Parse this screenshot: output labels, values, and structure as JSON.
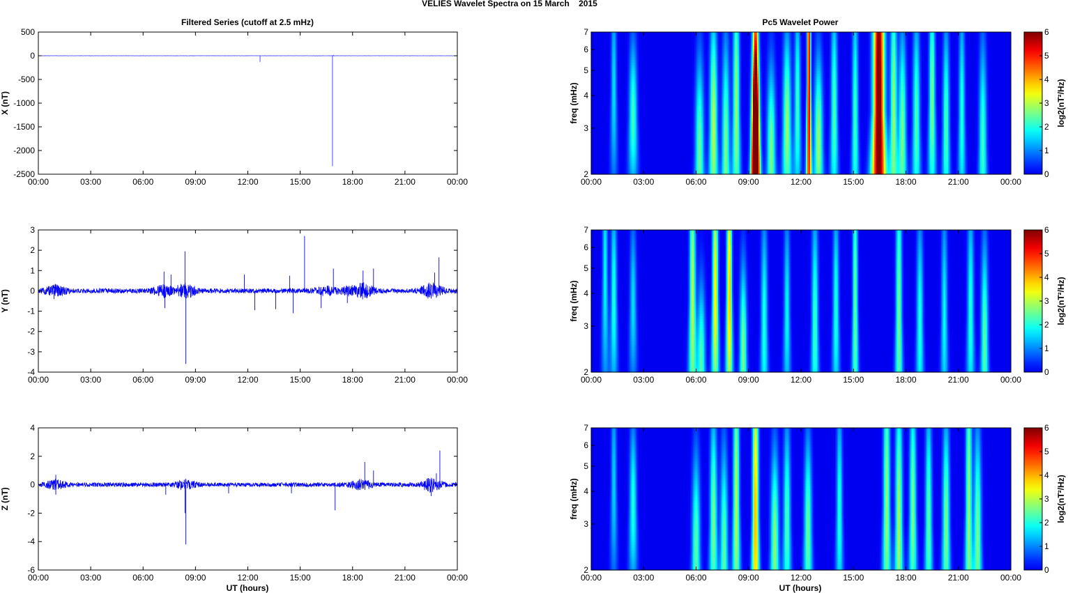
{
  "figure": {
    "title": "VELIES Wavelet Spectra on 15 March    2015",
    "left_title": "Filtered Series (cutoff at 2.5 mHz)",
    "right_title": "Pc5 Wavelet Power",
    "xlabel": "UT (hours)"
  },
  "colors": {
    "trace": "#0000ff",
    "axis": "#000000",
    "spectrum_background": "#00008f"
  },
  "colormap": "jet",
  "chart_data": [
    {
      "type": "line",
      "name": "x-series",
      "ylabel": "X (nT)",
      "xlim": [
        0,
        24
      ],
      "ylim": [
        -2500,
        500
      ],
      "x_ticks": [
        "00:00",
        "03:00",
        "06:00",
        "09:00",
        "12:00",
        "15:00",
        "18:00",
        "21:00",
        "00:00"
      ],
      "y_ticks": [
        500,
        0,
        -500,
        -1000,
        -1500,
        -2000,
        -2500
      ],
      "baseline": 0,
      "noise_amplitude": 2,
      "spikes": [
        [
          12.7,
          -130
        ],
        [
          16.85,
          -2330
        ],
        [
          16.9,
          15
        ]
      ]
    },
    {
      "type": "line",
      "name": "y-series",
      "ylabel": "Y (nT)",
      "xlim": [
        0,
        24
      ],
      "ylim": [
        -4,
        3
      ],
      "x_ticks": [
        "00:00",
        "03:00",
        "06:00",
        "09:00",
        "12:00",
        "15:00",
        "18:00",
        "21:00",
        "00:00"
      ],
      "y_ticks": [
        3,
        2,
        1,
        0,
        -1,
        -2,
        -3,
        -4
      ],
      "baseline": 0,
      "noise_amplitude": 0.12,
      "noise_bursts": [
        [
          1.0,
          0.35
        ],
        [
          7.2,
          0.35
        ],
        [
          8.4,
          0.45
        ],
        [
          16.5,
          0.3
        ],
        [
          17.8,
          0.35
        ],
        [
          18.6,
          0.45
        ],
        [
          22.5,
          0.45
        ]
      ],
      "spikes": [
        [
          0.9,
          -0.4
        ],
        [
          7.2,
          0.95
        ],
        [
          7.25,
          -0.85
        ],
        [
          7.6,
          0.8
        ],
        [
          8.4,
          1.95
        ],
        [
          8.45,
          -3.6
        ],
        [
          11.8,
          0.8
        ],
        [
          12.4,
          -0.95
        ],
        [
          13.6,
          -0.9
        ],
        [
          14.4,
          0.75
        ],
        [
          14.6,
          -1.1
        ],
        [
          15.25,
          2.7
        ],
        [
          16.2,
          -0.85
        ],
        [
          16.9,
          1.1
        ],
        [
          17.7,
          -0.6
        ],
        [
          18.6,
          1.0
        ],
        [
          19.2,
          1.1
        ],
        [
          22.7,
          0.9
        ],
        [
          22.95,
          1.65
        ]
      ]
    },
    {
      "type": "line",
      "name": "z-series",
      "ylabel": "Z (nT)",
      "xlim": [
        0,
        24
      ],
      "ylim": [
        -6,
        4
      ],
      "x_ticks": [
        "00:00",
        "03:00",
        "06:00",
        "09:00",
        "12:00",
        "15:00",
        "18:00",
        "21:00",
        "00:00"
      ],
      "y_ticks": [
        4,
        2,
        0,
        -2,
        -4,
        -6
      ],
      "baseline": 0,
      "noise_amplitude": 0.15,
      "noise_bursts": [
        [
          1.0,
          0.4
        ],
        [
          8.4,
          0.4
        ],
        [
          18.5,
          0.45
        ],
        [
          22.5,
          0.6
        ]
      ],
      "spikes": [
        [
          1.0,
          0.7
        ],
        [
          1.0,
          -0.7
        ],
        [
          7.3,
          -0.7
        ],
        [
          8.4,
          -2.0
        ],
        [
          8.45,
          -4.2
        ],
        [
          10.9,
          -0.6
        ],
        [
          14.5,
          -0.6
        ],
        [
          17.0,
          -1.8
        ],
        [
          18.7,
          1.6
        ],
        [
          19.2,
          1.0
        ],
        [
          22.5,
          -0.8
        ],
        [
          22.8,
          0.8
        ],
        [
          23.0,
          2.4
        ]
      ]
    },
    {
      "type": "heatmap",
      "name": "x-wavelet",
      "ylabel": "freq (mHz)",
      "yscale": "log",
      "xlim": [
        0,
        24
      ],
      "ylim": [
        2,
        7
      ],
      "x_ticks": [
        "00:00",
        "03:00",
        "06:00",
        "09:00",
        "12:00",
        "15:00",
        "18:00",
        "21:00",
        "00:00"
      ],
      "y_ticks": [
        7,
        6,
        5,
        4,
        3,
        2
      ],
      "colorbar": {
        "label": "log2(nT²/Hz)",
        "range": [
          0,
          6
        ],
        "ticks": [
          6,
          5,
          4,
          3,
          2,
          1,
          0
        ]
      },
      "bursts": [
        [
          1.3,
          4.2,
          1.6,
          0.11,
          1.2
        ],
        [
          2.4,
          3.3,
          2.2,
          0.16,
          0.9
        ],
        [
          6.2,
          2.4,
          2.5,
          0.17,
          1.1
        ],
        [
          7.0,
          3.0,
          3.0,
          0.15,
          1.3
        ],
        [
          7.7,
          2.4,
          2.6,
          0.15,
          1.3
        ],
        [
          8.3,
          3.5,
          2.8,
          0.13,
          1.6
        ],
        [
          9.4,
          3.5,
          5.0,
          0.11,
          2.0
        ],
        [
          9.4,
          2.6,
          5.5,
          0.16,
          0.9
        ],
        [
          10.3,
          2.4,
          2.6,
          0.17,
          1.0
        ],
        [
          11.2,
          3.0,
          2.8,
          0.16,
          1.1
        ],
        [
          11.8,
          3.6,
          2.2,
          0.12,
          1.2
        ],
        [
          12.45,
          4.5,
          5.5,
          0.07,
          3.0
        ],
        [
          13.0,
          2.6,
          2.8,
          0.17,
          1.0
        ],
        [
          13.9,
          3.4,
          2.3,
          0.13,
          1.3
        ],
        [
          15.1,
          3.2,
          2.2,
          0.12,
          1.5
        ],
        [
          16.45,
          3.5,
          6.5,
          0.22,
          3.0
        ],
        [
          17.3,
          3.4,
          2.8,
          0.13,
          1.6
        ],
        [
          17.8,
          2.8,
          2.6,
          0.15,
          1.2
        ],
        [
          18.6,
          3.1,
          2.3,
          0.14,
          1.3
        ],
        [
          19.5,
          3.8,
          2.6,
          0.12,
          1.4
        ],
        [
          20.3,
          3.0,
          2.3,
          0.13,
          1.2
        ],
        [
          21.2,
          3.3,
          2.0,
          0.12,
          1.3
        ],
        [
          22.4,
          2.6,
          2.2,
          0.15,
          1.2
        ]
      ]
    },
    {
      "type": "heatmap",
      "name": "y-wavelet",
      "ylabel": "freq (mHz)",
      "yscale": "log",
      "xlim": [
        0,
        24
      ],
      "ylim": [
        2,
        7
      ],
      "x_ticks": [
        "00:00",
        "03:00",
        "06:00",
        "09:00",
        "12:00",
        "15:00",
        "18:00",
        "21:00",
        "00:00"
      ],
      "y_ticks": [
        7,
        6,
        5,
        4,
        3,
        2
      ],
      "colorbar": {
        "label": "log2(nT²/Hz)",
        "range": [
          0,
          6
        ],
        "ticks": [
          6,
          5,
          4,
          3,
          2,
          1,
          0
        ]
      },
      "bursts": [
        [
          0.8,
          4.8,
          1.8,
          0.1,
          1.5
        ],
        [
          1.3,
          3.8,
          2.0,
          0.12,
          1.2
        ],
        [
          2.4,
          3.6,
          1.6,
          0.13,
          1.0
        ],
        [
          5.8,
          3.8,
          3.0,
          0.12,
          1.8
        ],
        [
          6.3,
          2.2,
          2.3,
          0.16,
          0.9
        ],
        [
          7.1,
          4.0,
          3.6,
          0.11,
          1.5
        ],
        [
          7.9,
          4.1,
          4.0,
          0.1,
          1.6
        ],
        [
          8.7,
          2.4,
          2.6,
          0.14,
          1.0
        ],
        [
          9.9,
          3.0,
          2.0,
          0.13,
          1.3
        ],
        [
          11.2,
          3.3,
          1.8,
          0.12,
          1.2
        ],
        [
          12.8,
          3.0,
          2.2,
          0.13,
          1.4
        ],
        [
          14.0,
          3.4,
          2.0,
          0.12,
          1.3
        ],
        [
          15.1,
          3.6,
          2.5,
          0.1,
          2.0
        ],
        [
          17.6,
          3.3,
          2.6,
          0.12,
          1.8
        ],
        [
          18.8,
          3.0,
          2.0,
          0.13,
          1.3
        ],
        [
          20.2,
          3.2,
          1.8,
          0.12,
          1.3
        ],
        [
          21.7,
          3.3,
          2.0,
          0.13,
          1.4
        ],
        [
          22.5,
          2.6,
          2.4,
          0.14,
          1.2
        ]
      ]
    },
    {
      "type": "heatmap",
      "name": "z-wavelet",
      "ylabel": "freq (mHz)",
      "yscale": "log",
      "xlim": [
        0,
        24
      ],
      "ylim": [
        2,
        7
      ],
      "x_ticks": [
        "00:00",
        "03:00",
        "06:00",
        "09:00",
        "12:00",
        "15:00",
        "18:00",
        "21:00",
        "00:00"
      ],
      "y_ticks": [
        7,
        6,
        5,
        4,
        3,
        2
      ],
      "colorbar": {
        "label": "log2(nT²/Hz)",
        "range": [
          0,
          6
        ],
        "ticks": [
          6,
          5,
          4,
          3,
          2,
          1,
          0
        ]
      },
      "bursts": [
        [
          1.3,
          4.2,
          1.5,
          0.11,
          1.2
        ],
        [
          2.4,
          3.5,
          2.0,
          0.14,
          1.0
        ],
        [
          6.0,
          2.4,
          2.4,
          0.16,
          1.1
        ],
        [
          7.0,
          3.0,
          2.6,
          0.14,
          1.3
        ],
        [
          7.6,
          2.4,
          2.4,
          0.15,
          1.2
        ],
        [
          8.3,
          3.6,
          3.0,
          0.12,
          1.8
        ],
        [
          9.4,
          3.2,
          4.0,
          0.12,
          2.0
        ],
        [
          10.5,
          2.5,
          2.7,
          0.16,
          1.1
        ],
        [
          11.2,
          3.0,
          2.3,
          0.14,
          1.2
        ],
        [
          12.4,
          2.8,
          2.5,
          0.15,
          1.1
        ],
        [
          14.2,
          3.3,
          2.0,
          0.12,
          1.3
        ],
        [
          16.9,
          3.5,
          2.8,
          0.13,
          1.8
        ],
        [
          17.6,
          3.0,
          2.9,
          0.14,
          1.6
        ],
        [
          18.4,
          3.3,
          2.6,
          0.13,
          1.5
        ],
        [
          19.3,
          3.0,
          2.4,
          0.13,
          1.4
        ],
        [
          20.3,
          2.9,
          2.6,
          0.14,
          1.3
        ],
        [
          21.6,
          3.4,
          2.8,
          0.12,
          2.0
        ],
        [
          22.1,
          2.6,
          2.6,
          0.15,
          1.3
        ]
      ]
    }
  ]
}
